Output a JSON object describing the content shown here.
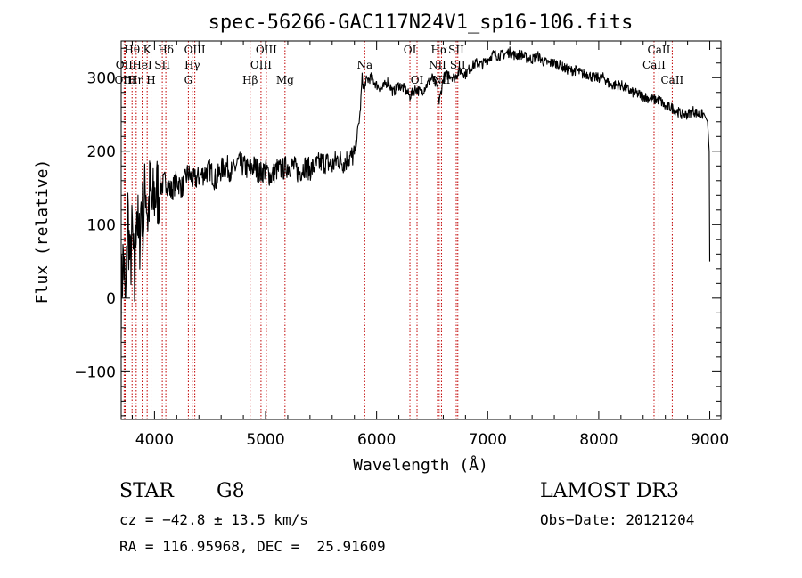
{
  "chart_data": {
    "type": "line",
    "title": "spec-56266-GAC117N24V1_sp16-106.fits",
    "xlabel": "Wavelength (Å)",
    "ylabel": "Flux (relative)",
    "xlim": [
      3700,
      9100
    ],
    "ylim": [
      -165,
      350
    ],
    "xticks": [
      4000,
      5000,
      6000,
      7000,
      8000,
      9000
    ],
    "yticks": [
      -100,
      0,
      100,
      200,
      300
    ],
    "x_minor_step": 200,
    "y_minor_step": 20,
    "series": [
      {
        "name": "flux",
        "x": [
          3700,
          3720,
          3740,
          3760,
          3780,
          3800,
          3820,
          3840,
          3860,
          3880,
          3900,
          3920,
          3940,
          3960,
          3980,
          4000,
          4050,
          4100,
          4150,
          4200,
          4250,
          4300,
          4350,
          4400,
          4450,
          4500,
          4550,
          4600,
          4650,
          4700,
          4750,
          4800,
          4850,
          4900,
          4950,
          5000,
          5050,
          5100,
          5150,
          5200,
          5250,
          5300,
          5350,
          5400,
          5450,
          5500,
          5550,
          5600,
          5650,
          5700,
          5750,
          5800,
          5850,
          5870,
          5890,
          5900,
          5950,
          6000,
          6050,
          6100,
          6150,
          6200,
          6250,
          6300,
          6350,
          6400,
          6450,
          6500,
          6550,
          6563,
          6600,
          6650,
          6700,
          6750,
          6800,
          6850,
          6900,
          6950,
          7000,
          7050,
          7100,
          7150,
          7200,
          7250,
          7300,
          7350,
          7400,
          7450,
          7500,
          7550,
          7600,
          7650,
          7700,
          7750,
          7800,
          7850,
          7900,
          7950,
          8000,
          8050,
          8100,
          8150,
          8200,
          8250,
          8300,
          8350,
          8400,
          8450,
          8500,
          8550,
          8600,
          8650,
          8700,
          8750,
          8800,
          8850,
          8900,
          8950,
          8980,
          8995,
          9000
        ],
        "values": [
          0,
          60,
          -20,
          120,
          40,
          90,
          10,
          140,
          60,
          130,
          100,
          160,
          110,
          150,
          120,
          140,
          150,
          160,
          145,
          160,
          150,
          170,
          160,
          165,
          170,
          175,
          160,
          175,
          180,
          170,
          185,
          180,
          175,
          180,
          170,
          175,
          165,
          175,
          175,
          180,
          180,
          170,
          180,
          175,
          180,
          185,
          185,
          180,
          190,
          185,
          190,
          195,
          250,
          300,
          280,
          295,
          300,
          290,
          285,
          295,
          280,
          290,
          285,
          275,
          285,
          280,
          290,
          300,
          285,
          265,
          300,
          305,
          300,
          310,
          305,
          315,
          320,
          318,
          325,
          332,
          330,
          332,
          335,
          330,
          332,
          327,
          325,
          330,
          322,
          320,
          320,
          317,
          312,
          310,
          310,
          305,
          305,
          300,
          300,
          300,
          290,
          290,
          290,
          285,
          280,
          278,
          275,
          272,
          270,
          270,
          260,
          260,
          255,
          250,
          250,
          255,
          250,
          250,
          240,
          200,
          50
        ]
      }
    ],
    "emission_lines": [
      {
        "label": "Hθ",
        "x": 3798,
        "row": 0
      },
      {
        "label": "OII",
        "x": 3727,
        "row": 1
      },
      {
        "label": "OIII",
        "x": 3736,
        "row": 2
      },
      {
        "label": "K",
        "x": 3934,
        "row": 0
      },
      {
        "label": "HeI",
        "x": 3889,
        "row": 1
      },
      {
        "label": "Hη",
        "x": 3835,
        "row": 2
      },
      {
        "label": "Hδ",
        "x": 4102,
        "row": 0
      },
      {
        "label": "SII",
        "x": 4070,
        "row": 1
      },
      {
        "label": "H",
        "x": 3969,
        "row": 2
      },
      {
        "label": "OIII",
        "x": 4363,
        "row": 0
      },
      {
        "label": "Hγ",
        "x": 4340,
        "row": 1
      },
      {
        "label": "G",
        "x": 4305,
        "row": 2
      },
      {
        "label": "OIII",
        "x": 5007,
        "row": 0
      },
      {
        "label": "OIII",
        "x": 4959,
        "row": 1
      },
      {
        "label": "Hβ",
        "x": 4861,
        "row": 2
      },
      {
        "label": "Mg",
        "x": 5175,
        "row": 2
      },
      {
        "label": "Na",
        "x": 5893,
        "row": 1
      },
      {
        "label": "OI",
        "x": 6300,
        "row": 0
      },
      {
        "label": "OI",
        "x": 6364,
        "row": 2
      },
      {
        "label": "Hα",
        "x": 6563,
        "row": 0
      },
      {
        "label": "NII",
        "x": 6548,
        "row": 1
      },
      {
        "label": "SII",
        "x": 6717,
        "row": 0
      },
      {
        "label": "SII",
        "x": 6731,
        "row": 1
      },
      {
        "label": "NII",
        "x": 6584,
        "row": 2
      },
      {
        "label": "CaII",
        "x": 8542,
        "row": 0
      },
      {
        "label": "CaII",
        "x": 8498,
        "row": 1
      },
      {
        "label": "CaII",
        "x": 8662,
        "row": 2
      }
    ]
  },
  "info": {
    "class": "STAR",
    "subclass": "G8",
    "cz": "cz = −42.8 ± 13.5 km/s",
    "coords": "RA = 116.95968, DEC =  25.91609",
    "survey": "LAMOST DR3",
    "obs_date": "Obs−Date: 20121204"
  }
}
